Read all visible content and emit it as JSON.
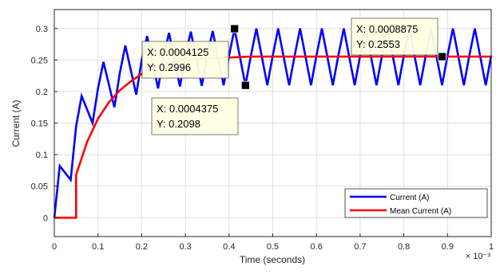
{
  "chart_data": {
    "type": "line",
    "xlabel": "Time (seconds)",
    "ylabel": "Current (A)",
    "x_exponent_label": "× 10⁻³",
    "xlim": [
      0,
      1
    ],
    "ylim": [
      -0.03,
      0.33
    ],
    "x_ticks": [
      "0",
      "0.1",
      "0.2",
      "0.3",
      "0.4",
      "0.5",
      "0.6",
      "0.7",
      "0.8",
      "0.9",
      "1"
    ],
    "y_ticks": [
      "0",
      "0.05",
      "0.1",
      "0.15",
      "0.2",
      "0.25",
      "0.3"
    ],
    "grid": true,
    "legend_position": "bottom-right",
    "series": [
      {
        "name": "Current (A)",
        "color": "#0000ff",
        "x": [
          0,
          0.0125,
          0.0375,
          0.05,
          0.0625,
          0.0875,
          0.1,
          0.1125,
          0.1375,
          0.15,
          0.1625,
          0.1875,
          0.2,
          0.2125,
          0.2375,
          0.25,
          0.2625,
          0.2875,
          0.3,
          0.3125,
          0.3375,
          0.35,
          0.3625,
          0.3875,
          0.4,
          0.4125,
          0.4375,
          0.45,
          0.4625,
          0.4875,
          0.5,
          0.5125,
          0.5375,
          0.55,
          0.5625,
          0.5875,
          0.6,
          0.6125,
          0.6375,
          0.65,
          0.6625,
          0.6875,
          0.7,
          0.7125,
          0.7375,
          0.75,
          0.7625,
          0.7875,
          0.8,
          0.8125,
          0.8375,
          0.85,
          0.8625,
          0.8875,
          0.9,
          0.9125,
          0.9375,
          0.95,
          0.9625,
          0.9875,
          1.0
        ],
        "y": [
          0,
          0.082,
          0.06,
          0.145,
          0.193,
          0.15,
          0.205,
          0.247,
          0.175,
          0.23,
          0.273,
          0.195,
          0.25,
          0.288,
          0.205,
          0.255,
          0.293,
          0.208,
          0.257,
          0.295,
          0.209,
          0.257,
          0.296,
          0.21,
          0.257,
          0.2996,
          0.2098,
          0.257,
          0.3,
          0.21,
          0.257,
          0.3,
          0.21,
          0.257,
          0.3,
          0.21,
          0.257,
          0.3,
          0.21,
          0.257,
          0.3,
          0.21,
          0.257,
          0.3,
          0.21,
          0.257,
          0.3,
          0.21,
          0.257,
          0.3,
          0.21,
          0.257,
          0.3,
          0.21,
          0.257,
          0.3,
          0.21,
          0.257,
          0.3,
          0.21,
          0.257
        ]
      },
      {
        "name": "Mean Current (A)",
        "color": "#ff0000",
        "x": [
          0,
          0.05,
          0.05,
          0.075,
          0.1,
          0.125,
          0.15,
          0.175,
          0.2,
          0.225,
          0.25,
          0.275,
          0.3,
          0.35,
          0.4,
          0.45,
          0.5,
          0.6,
          0.7,
          0.8,
          0.9,
          1.0
        ],
        "y": [
          0,
          0,
          0.068,
          0.12,
          0.157,
          0.183,
          0.202,
          0.216,
          0.228,
          0.236,
          0.242,
          0.247,
          0.25,
          0.253,
          0.254,
          0.2553,
          0.2553,
          0.2553,
          0.2553,
          0.2553,
          0.2553,
          0.2553
        ]
      }
    ],
    "datatips": [
      {
        "x": 0.4125,
        "y": 0.2996,
        "line1": "X: 0.0004125",
        "line2": "Y: 0.2996"
      },
      {
        "x": 0.4375,
        "y": 0.2098,
        "line1": "X: 0.0004375",
        "line2": "Y: 0.2098"
      },
      {
        "x": 0.8875,
        "y": 0.2553,
        "line1": "X: 0.0008875",
        "line2": "Y: 0.2553"
      }
    ]
  }
}
